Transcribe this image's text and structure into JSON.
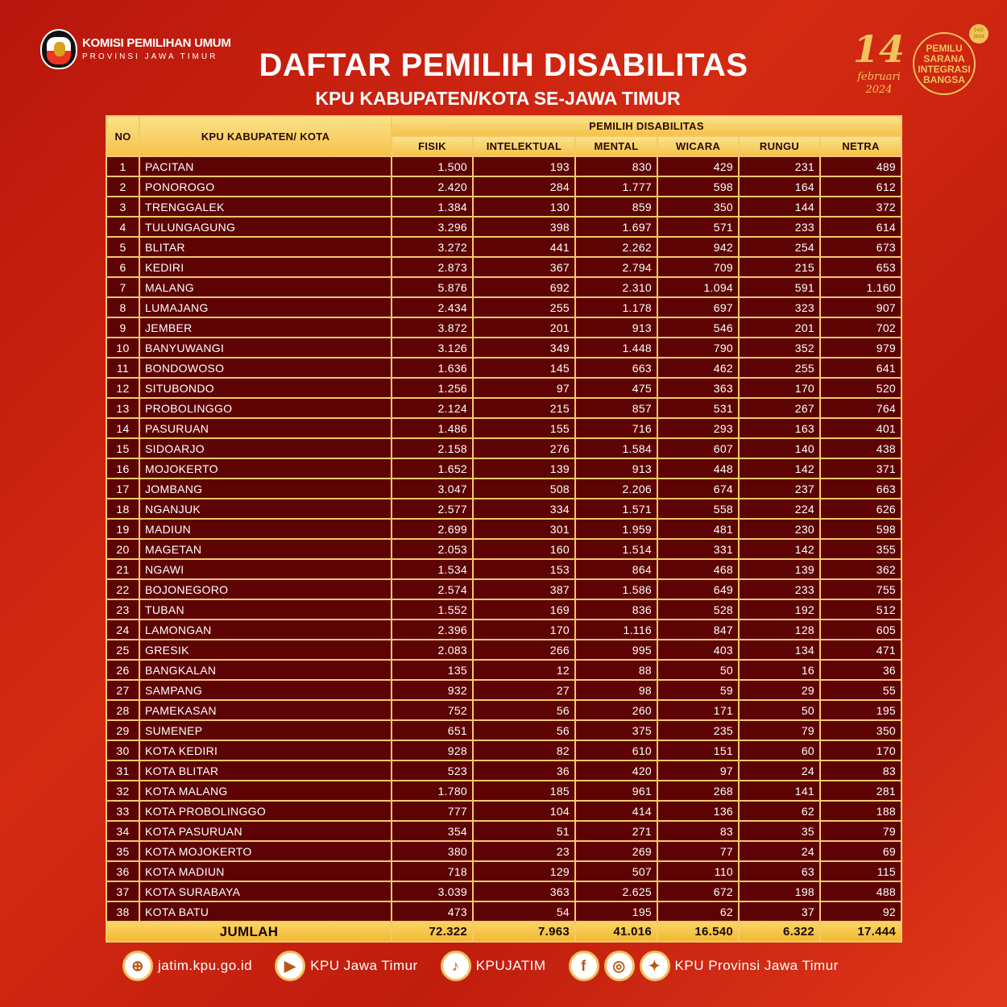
{
  "header": {
    "org_name": "KOMISI PEMILIHAN UMUM",
    "org_region": "PROVINSI JAWA TIMUR",
    "title": "DAFTAR PEMILIH DISABILITAS",
    "subtitle": "KPU KABUPATEN/KOTA SE-JAWA TIMUR",
    "election_day": "14",
    "election_month_year": "februari 2024",
    "campaign_lines": [
      "PEMILU",
      "SARANA",
      "INTEGRASI",
      "BANGSA"
    ],
    "campaign_date": "14/2 2024"
  },
  "table": {
    "col_no": "NO",
    "col_name": "KPU KABUPATEN/ KOTA",
    "group_header": "PEMILIH DISABILITAS",
    "columns": [
      "FISIK",
      "INTELEKTUAL",
      "MENTAL",
      "WICARA",
      "RUNGU",
      "NETRA"
    ],
    "rows": [
      [
        "1",
        "PACITAN",
        "1.500",
        "193",
        "830",
        "429",
        "231",
        "489"
      ],
      [
        "2",
        "PONOROGO",
        "2.420",
        "284",
        "1.777",
        "598",
        "164",
        "612"
      ],
      [
        "3",
        "TRENGGALEK",
        "1.384",
        "130",
        "859",
        "350",
        "144",
        "372"
      ],
      [
        "4",
        "TULUNGAGUNG",
        "3.296",
        "398",
        "1.697",
        "571",
        "233",
        "614"
      ],
      [
        "5",
        "BLITAR",
        "3.272",
        "441",
        "2.262",
        "942",
        "254",
        "673"
      ],
      [
        "6",
        "KEDIRI",
        "2.873",
        "367",
        "2.794",
        "709",
        "215",
        "653"
      ],
      [
        "7",
        "MALANG",
        "5.876",
        "692",
        "2.310",
        "1.094",
        "591",
        "1.160"
      ],
      [
        "8",
        "LUMAJANG",
        "2.434",
        "255",
        "1.178",
        "697",
        "323",
        "907"
      ],
      [
        "9",
        "JEMBER",
        "3.872",
        "201",
        "913",
        "546",
        "201",
        "702"
      ],
      [
        "10",
        "BANYUWANGI",
        "3.126",
        "349",
        "1.448",
        "790",
        "352",
        "979"
      ],
      [
        "11",
        "BONDOWOSO",
        "1.636",
        "145",
        "663",
        "462",
        "255",
        "641"
      ],
      [
        "12",
        "SITUBONDO",
        "1.256",
        "97",
        "475",
        "363",
        "170",
        "520"
      ],
      [
        "13",
        "PROBOLINGGO",
        "2.124",
        "215",
        "857",
        "531",
        "267",
        "764"
      ],
      [
        "14",
        "PASURUAN",
        "1.486",
        "155",
        "716",
        "293",
        "163",
        "401"
      ],
      [
        "15",
        "SIDOARJO",
        "2.158",
        "276",
        "1.584",
        "607",
        "140",
        "438"
      ],
      [
        "16",
        "MOJOKERTO",
        "1.652",
        "139",
        "913",
        "448",
        "142",
        "371"
      ],
      [
        "17",
        "JOMBANG",
        "3.047",
        "508",
        "2.206",
        "674",
        "237",
        "663"
      ],
      [
        "18",
        "NGANJUK",
        "2.577",
        "334",
        "1.571",
        "558",
        "224",
        "626"
      ],
      [
        "19",
        "MADIUN",
        "2.699",
        "301",
        "1.959",
        "481",
        "230",
        "598"
      ],
      [
        "20",
        "MAGETAN",
        "2.053",
        "160",
        "1.514",
        "331",
        "142",
        "355"
      ],
      [
        "21",
        "NGAWI",
        "1.534",
        "153",
        "864",
        "468",
        "139",
        "362"
      ],
      [
        "22",
        "BOJONEGORO",
        "2.574",
        "387",
        "1.586",
        "649",
        "233",
        "755"
      ],
      [
        "23",
        "TUBAN",
        "1.552",
        "169",
        "836",
        "528",
        "192",
        "512"
      ],
      [
        "24",
        "LAMONGAN",
        "2.396",
        "170",
        "1.116",
        "847",
        "128",
        "605"
      ],
      [
        "25",
        "GRESIK",
        "2.083",
        "266",
        "995",
        "403",
        "134",
        "471"
      ],
      [
        "26",
        "BANGKALAN",
        "135",
        "12",
        "88",
        "50",
        "16",
        "36"
      ],
      [
        "27",
        "SAMPANG",
        "932",
        "27",
        "98",
        "59",
        "29",
        "55"
      ],
      [
        "28",
        "PAMEKASAN",
        "752",
        "56",
        "260",
        "171",
        "50",
        "195"
      ],
      [
        "29",
        "SUMENEP",
        "651",
        "56",
        "375",
        "235",
        "79",
        "350"
      ],
      [
        "30",
        "KOTA KEDIRI",
        "928",
        "82",
        "610",
        "151",
        "60",
        "170"
      ],
      [
        "31",
        "KOTA BLITAR",
        "523",
        "36",
        "420",
        "97",
        "24",
        "83"
      ],
      [
        "32",
        "KOTA MALANG",
        "1.780",
        "185",
        "961",
        "268",
        "141",
        "281"
      ],
      [
        "33",
        "KOTA PROBOLINGGO",
        "777",
        "104",
        "414",
        "136",
        "62",
        "188"
      ],
      [
        "34",
        "KOTA PASURUAN",
        "354",
        "51",
        "271",
        "83",
        "35",
        "79"
      ],
      [
        "35",
        "KOTA MOJOKERTO",
        "380",
        "23",
        "269",
        "77",
        "24",
        "69"
      ],
      [
        "36",
        "KOTA MADIUN",
        "718",
        "129",
        "507",
        "110",
        "63",
        "115"
      ],
      [
        "37",
        "KOTA SURABAYA",
        "3.039",
        "363",
        "2.625",
        "672",
        "198",
        "488"
      ],
      [
        "38",
        "KOTA BATU",
        "473",
        "54",
        "195",
        "62",
        "37",
        "92"
      ]
    ],
    "total_label": "JUMLAH",
    "totals": [
      "72.322",
      "7.963",
      "41.016",
      "16.540",
      "6.322",
      "17.444"
    ]
  },
  "footer": {
    "website": "jatim.kpu.go.id",
    "youtube": "KPU Jawa Timur",
    "tiktok": "KPUJATIM",
    "social": "KPU Provinsi Jawa Timur"
  },
  "colors": {
    "background": "#c8200f",
    "row": "#5e0303",
    "gold": "#f3c96b"
  }
}
